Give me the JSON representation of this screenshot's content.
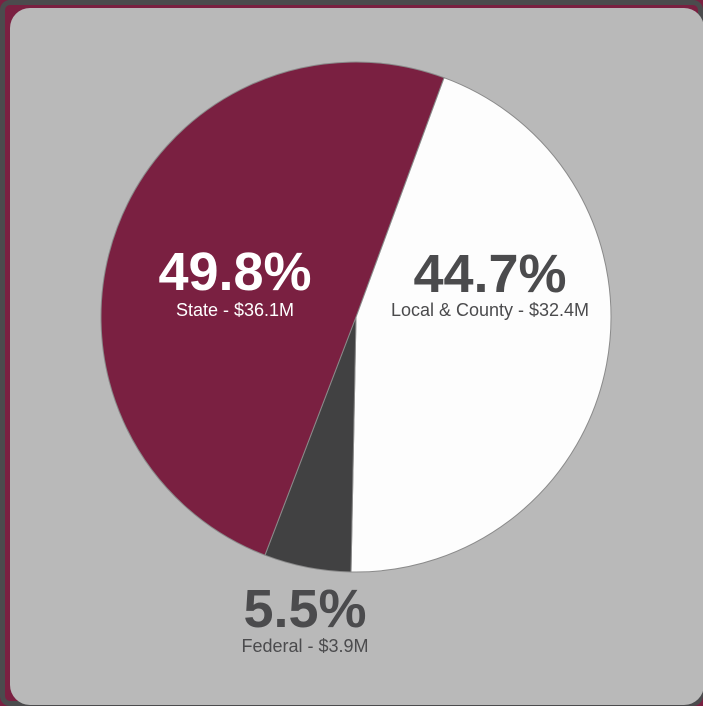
{
  "colors": {
    "page_bg": "#7a2041",
    "card_bg": "#b9b9b9",
    "state": "#7a2041",
    "local": "#fdfdfd",
    "federal": "#414142",
    "label_dark": "#4b4b4d",
    "label_light": "#ffffff"
  },
  "chart_data": {
    "type": "pie",
    "title": "",
    "slices": [
      {
        "name": "Local & County",
        "percent": 44.7,
        "percent_label": "44.7%",
        "amount_label": "Local & County - $32.4M",
        "color": "#fdfdfd",
        "label_color": "#4b4b4d"
      },
      {
        "name": "Federal",
        "percent": 5.5,
        "percent_label": "5.5%",
        "amount_label": "Federal - $3.9M",
        "color": "#414142",
        "label_color": "#4b4b4d"
      },
      {
        "name": "State",
        "percent": 49.8,
        "percent_label": "49.8%",
        "amount_label": "State - $36.1M",
        "color": "#7a2041",
        "label_color": "#ffffff"
      }
    ]
  }
}
